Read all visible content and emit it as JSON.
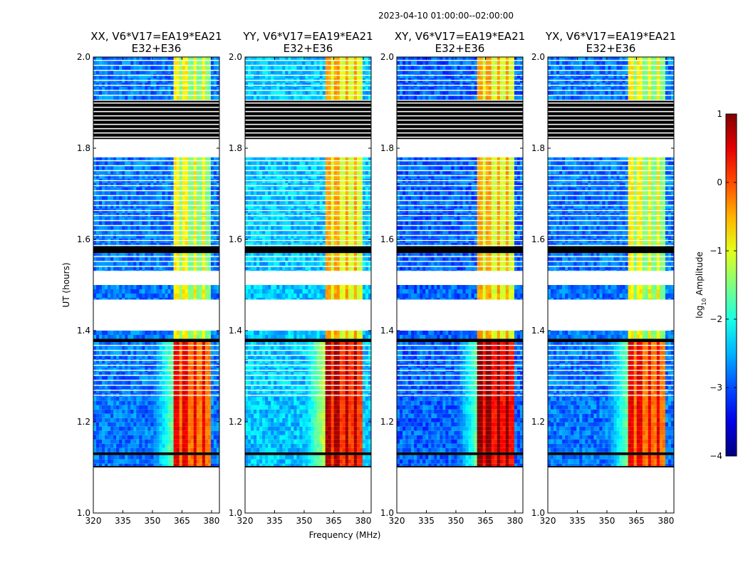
{
  "chart_data": {
    "type": "heatmap",
    "suptitle": "2023-04-10  01:00:00--02:00:00",
    "xlabel": "Frequency (MHz)",
    "ylabel": "UT (hours)",
    "xlim": [
      320,
      384
    ],
    "ylim": [
      1.0,
      2.0
    ],
    "xticks": [
      "320",
      "335",
      "350",
      "365",
      "380"
    ],
    "xtick_values": [
      320,
      335,
      350,
      365,
      380
    ],
    "yticks": [
      "1.0",
      "1.2",
      "1.4",
      "1.6",
      "1.8",
      "2.0"
    ],
    "ytick_values": [
      1.0,
      1.2,
      1.4,
      1.6,
      1.8,
      2.0
    ],
    "panels": [
      {
        "title_line1": "XX, V6*V17=EA19*EA21",
        "title_line2": "E32+E36",
        "pol": "XX"
      },
      {
        "title_line1": "YY, V6*V17=EA19*EA21",
        "title_line2": "E32+E36",
        "pol": "YY"
      },
      {
        "title_line1": "XY, V6*V17=EA19*EA21",
        "title_line2": "E32+E36",
        "pol": "XY"
      },
      {
        "title_line1": "YX, V6*V17=EA19*EA21",
        "title_line2": "E32+E36",
        "pol": "YX"
      }
    ],
    "colorbar": {
      "label": "log10 Amplitude",
      "label_prefix": "log",
      "label_sub": "10",
      "label_suffix": " Amplitude",
      "ticks": [
        "1",
        "0",
        "−1",
        "−2",
        "−3",
        "−4"
      ],
      "tick_values": [
        1,
        0,
        -1,
        -2,
        -3,
        -4
      ],
      "range": [
        -4,
        1
      ],
      "colormap": "jet"
    },
    "time_segments": [
      {
        "t0": 1.1,
        "t1": 1.103,
        "kind": "black"
      },
      {
        "t0": 1.103,
        "t1": 1.127,
        "kind": "data",
        "level": "high"
      },
      {
        "t0": 1.127,
        "t1": 1.133,
        "kind": "black"
      },
      {
        "t0": 1.133,
        "t1": 1.255,
        "kind": "data",
        "level": "high"
      },
      {
        "t0": 1.255,
        "t1": 1.375,
        "kind": "data",
        "level": "high",
        "striped": true
      },
      {
        "t0": 1.375,
        "t1": 1.382,
        "kind": "black"
      },
      {
        "t0": 1.382,
        "t1": 1.4,
        "kind": "data",
        "level": "mid"
      },
      {
        "t0": 1.4,
        "t1": 1.468,
        "kind": "gap"
      },
      {
        "t0": 1.468,
        "t1": 1.5,
        "kind": "data",
        "level": "mid"
      },
      {
        "t0": 1.5,
        "t1": 1.53,
        "kind": "gap"
      },
      {
        "t0": 1.53,
        "t1": 1.57,
        "kind": "data",
        "level": "mid",
        "striped": true
      },
      {
        "t0": 1.57,
        "t1": 1.585,
        "kind": "black"
      },
      {
        "t0": 1.585,
        "t1": 1.78,
        "kind": "data",
        "level": "mid",
        "striped": true
      },
      {
        "t0": 1.78,
        "t1": 1.82,
        "kind": "gap"
      },
      {
        "t0": 1.82,
        "t1": 1.905,
        "kind": "black",
        "striped": true
      },
      {
        "t0": 1.905,
        "t1": 2.0,
        "kind": "data",
        "level": "mid",
        "striped": true
      }
    ]
  }
}
